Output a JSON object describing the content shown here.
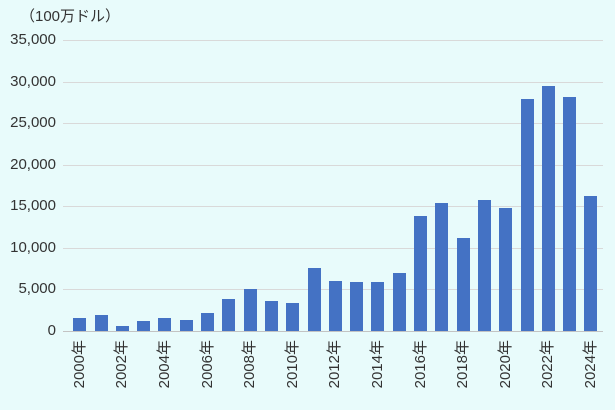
{
  "chart_data": {
    "type": "bar",
    "title": "",
    "unit_label": "（100万ドル）",
    "categories": [
      "2000",
      "2001",
      "2002",
      "2003",
      "2004",
      "2005",
      "2006",
      "2007",
      "2008",
      "2009",
      "2010",
      "2011",
      "2012",
      "2013",
      "2014",
      "2015",
      "2016",
      "2017",
      "2018",
      "2019",
      "2020",
      "2021",
      "2022",
      "2023",
      "2024"
    ],
    "category_label_suffix": "年",
    "x_label_every": 2,
    "x_tick_labels": [
      "2000年",
      "2002年",
      "2004年",
      "2006年",
      "2008年",
      "2010年",
      "2012年",
      "2014年",
      "2016年",
      "2018年",
      "2020年",
      "2022年",
      "2024年"
    ],
    "values": [
      1550,
      1900,
      650,
      1150,
      1600,
      1300,
      2200,
      3800,
      5050,
      3600,
      3350,
      7600,
      6000,
      5950,
      5875,
      7000,
      13800,
      15400,
      11200,
      15800,
      14800,
      27900,
      29500,
      28100,
      16200
    ],
    "ylim": [
      0,
      35000
    ],
    "y_ticks": [
      0,
      5000,
      10000,
      15000,
      20000,
      25000,
      30000,
      35000
    ],
    "grid": true,
    "legend": "none",
    "bar_color": "#4472c4",
    "background_color": "#e8fbfb",
    "gridline_color": "#d9d9d9",
    "text_color": "#333333"
  }
}
